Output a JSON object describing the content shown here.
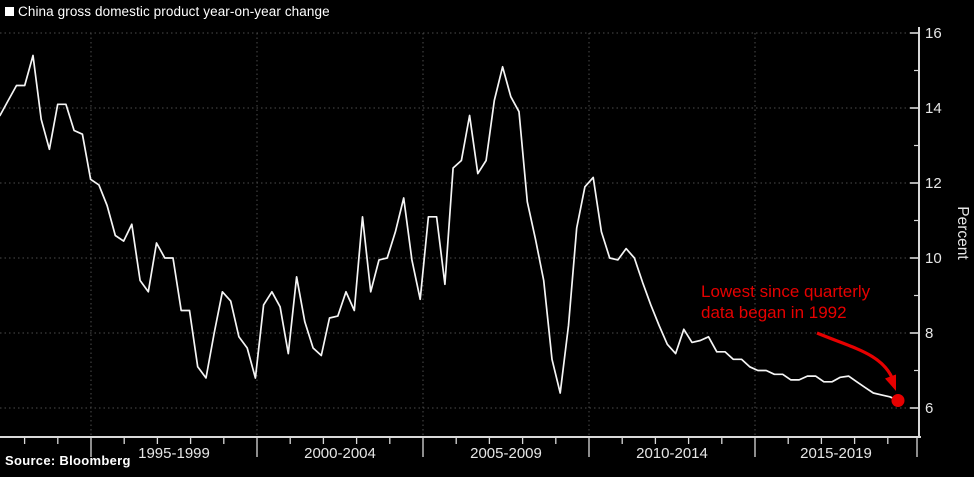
{
  "header": {
    "title": "China gross domestic product year-on-year change"
  },
  "source": {
    "text": "Source: Bloomberg"
  },
  "annotation": {
    "line1": "Lowest since quarterly",
    "line2": "data began in 1992",
    "color": "#e60000"
  },
  "colors": {
    "background": "#000000",
    "line": "#f5f5f5",
    "grid": "#4d4d4d",
    "axis": "#d9d9d9",
    "tick_text": "#e6e6e6",
    "accent_red": "#e60000"
  },
  "chart_data": {
    "type": "line",
    "title": "China gross domestic product year-on-year change",
    "xlabel": "",
    "ylabel": "Percent",
    "ylim": [
      6,
      16
    ],
    "grid": "dotted",
    "legend_position": "top-left",
    "y_ticks": [
      6,
      8,
      10,
      12,
      14,
      16
    ],
    "y_minor_ticks": [
      7,
      9,
      11,
      13,
      15
    ],
    "x_period_labels": [
      "1995-1999",
      "2000-2004",
      "2005-2009",
      "2010-2014",
      "2015-2019"
    ],
    "series": [
      {
        "name": "China GDP year-on-year change (%)",
        "frequency": "quarterly",
        "start": "1992 Q1",
        "end": "2019 Q2",
        "values": [
          13.8,
          14.2,
          14.6,
          14.6,
          15.4,
          13.7,
          12.9,
          14.1,
          14.1,
          13.4,
          13.3,
          12.1,
          11.95,
          11.4,
          10.6,
          10.45,
          10.9,
          9.4,
          9.1,
          10.4,
          10.0,
          10.0,
          8.6,
          8.6,
          7.1,
          6.8,
          8.0,
          9.1,
          8.85,
          7.9,
          7.6,
          6.8,
          8.75,
          9.1,
          8.7,
          7.45,
          9.5,
          8.3,
          7.6,
          7.4,
          8.4,
          8.45,
          9.1,
          8.6,
          11.1,
          9.1,
          9.95,
          10.0,
          10.7,
          11.6,
          9.95,
          8.9,
          11.1,
          11.1,
          9.3,
          12.4,
          12.6,
          13.8,
          12.25,
          12.6,
          14.2,
          15.1,
          14.3,
          13.9,
          11.5,
          10.5,
          9.4,
          7.3,
          6.4,
          8.2,
          10.8,
          11.9,
          12.15,
          10.7,
          10.0,
          9.95,
          10.25,
          10.0,
          9.35,
          8.75,
          8.2,
          7.7,
          7.45,
          8.1,
          7.75,
          7.8,
          7.9,
          7.5,
          7.5,
          7.3,
          7.3,
          7.1,
          7.0,
          7.0,
          6.9,
          6.9,
          6.75,
          6.75,
          6.85,
          6.85,
          6.7,
          6.7,
          6.82,
          6.85,
          6.7,
          6.55,
          6.4,
          6.35,
          6.3,
          6.2
        ]
      }
    ],
    "last_point": {
      "label": "2019 Q2",
      "value": 6.2
    }
  }
}
